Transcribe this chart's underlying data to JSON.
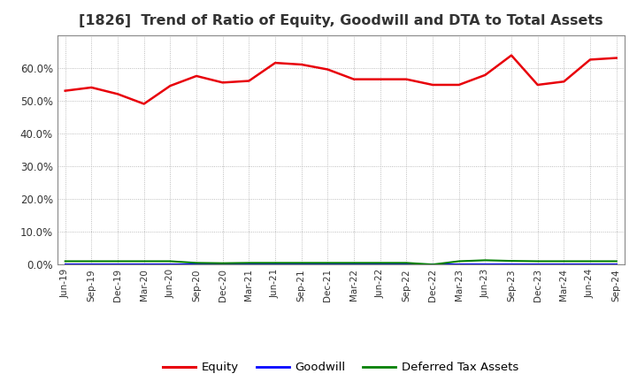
{
  "title": "[1826]  Trend of Ratio of Equity, Goodwill and DTA to Total Assets",
  "x_labels": [
    "Jun-19",
    "Sep-19",
    "Dec-19",
    "Mar-20",
    "Jun-20",
    "Sep-20",
    "Dec-20",
    "Mar-21",
    "Jun-21",
    "Sep-21",
    "Dec-21",
    "Mar-22",
    "Jun-22",
    "Sep-22",
    "Dec-22",
    "Mar-23",
    "Jun-23",
    "Sep-23",
    "Dec-23",
    "Mar-24",
    "Jun-24",
    "Sep-24"
  ],
  "equity": [
    0.53,
    0.54,
    0.52,
    0.49,
    0.545,
    0.575,
    0.555,
    0.56,
    0.615,
    0.61,
    0.595,
    0.565,
    0.565,
    0.565,
    0.548,
    0.548,
    0.578,
    0.638,
    0.548,
    0.558,
    0.625,
    0.63
  ],
  "goodwill": [
    0.0,
    0.0,
    0.0,
    0.0,
    0.0,
    0.0,
    0.0,
    0.0,
    0.0,
    0.0,
    0.0,
    0.0,
    0.0,
    0.0,
    0.0,
    0.0,
    0.0,
    0.0,
    0.0,
    0.0,
    0.0,
    0.0
  ],
  "dta": [
    0.01,
    0.01,
    0.01,
    0.01,
    0.01,
    0.005,
    0.004,
    0.005,
    0.005,
    0.005,
    0.005,
    0.005,
    0.005,
    0.005,
    0.0,
    0.01,
    0.013,
    0.011,
    0.01,
    0.01,
    0.01,
    0.01
  ],
  "equity_color": "#e8000a",
  "goodwill_color": "#0000ff",
  "dta_color": "#008000",
  "background_color": "#ffffff",
  "grid_color": "#aaaaaa",
  "ylim": [
    0.0,
    0.7
  ],
  "yticks": [
    0.0,
    0.1,
    0.2,
    0.3,
    0.4,
    0.5,
    0.6
  ],
  "legend_labels": [
    "Equity",
    "Goodwill",
    "Deferred Tax Assets"
  ]
}
